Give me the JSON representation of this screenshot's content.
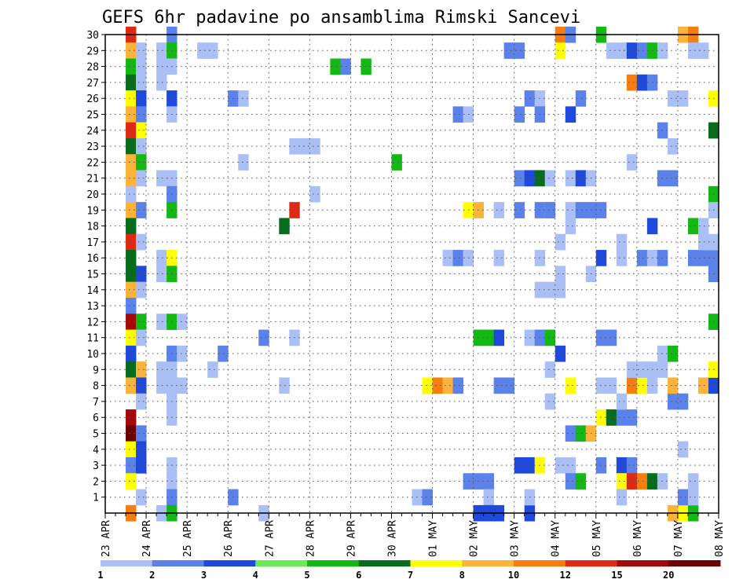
{
  "chart_data": {
    "type": "heatmap",
    "title": "GEFS 6hr padavine po ansamblima Rimski Sancevi",
    "x_tick_labels": [
      "23 APR",
      "24 APR",
      "25 APR",
      "26 APR",
      "27 APR",
      "28 APR",
      "29 APR",
      "30 APR",
      "01 MAY",
      "02 MAY",
      "03 MAY",
      "04 MAY",
      "05 MAY",
      "06 MAY",
      "07 MAY",
      "08 MAY"
    ],
    "x_steps_per_day": 4,
    "x_range_steps": [
      0,
      60
    ],
    "y_tick_labels": [
      "1",
      "2",
      "3",
      "4",
      "5",
      "6",
      "7",
      "8",
      "9",
      "10",
      "11",
      "12",
      "13",
      "14",
      "15",
      "16",
      "17",
      "18",
      "19",
      "20",
      "21",
      "22",
      "23",
      "24",
      "25",
      "26",
      "27",
      "28",
      "29",
      "30"
    ],
    "y_range": [
      0,
      30
    ],
    "grid": "dotted",
    "colorbar": {
      "labels": [
        "1",
        "2",
        "3",
        "4",
        "5",
        "6",
        "7",
        "8",
        "10",
        "12",
        "15",
        "20"
      ],
      "colors": [
        "#aabff5",
        "#5a82ea",
        "#1f48dc",
        "#6ce85a",
        "#14b814",
        "#066c1e",
        "#ffff00",
        "#fbb33a",
        "#f77e0c",
        "#de2a14",
        "#a50a0a",
        "#6b0303"
      ]
    },
    "cells_note": "each cell: [step_index, ensemble_member, color_class_index]",
    "cells": [
      [
        2,
        30,
        9
      ],
      [
        2,
        29,
        7
      ],
      [
        2,
        28,
        4
      ],
      [
        2,
        27,
        5
      ],
      [
        2,
        26,
        6
      ],
      [
        2,
        25,
        7
      ],
      [
        2,
        24,
        9
      ],
      [
        2,
        23,
        5
      ],
      [
        2,
        22,
        7
      ],
      [
        2,
        21,
        7
      ],
      [
        2,
        20,
        0
      ],
      [
        2,
        19,
        7
      ],
      [
        2,
        18,
        5
      ],
      [
        2,
        17,
        9
      ],
      [
        2,
        16,
        5
      ],
      [
        2,
        15,
        5
      ],
      [
        2,
        14,
        7
      ],
      [
        2,
        13,
        1
      ],
      [
        2,
        12,
        10
      ],
      [
        2,
        11,
        6
      ],
      [
        2,
        10,
        2
      ],
      [
        2,
        9,
        5
      ],
      [
        2,
        8,
        7
      ],
      [
        2,
        6,
        10
      ],
      [
        2,
        5,
        11
      ],
      [
        2,
        4,
        6
      ],
      [
        2,
        3,
        1
      ],
      [
        2,
        2,
        6
      ],
      [
        2,
        0,
        8
      ],
      [
        3,
        29,
        0
      ],
      [
        3,
        28,
        0
      ],
      [
        3,
        27,
        0
      ],
      [
        3,
        26,
        2
      ],
      [
        3,
        25,
        1
      ],
      [
        3,
        24,
        6
      ],
      [
        3,
        23,
        0
      ],
      [
        3,
        22,
        4
      ],
      [
        3,
        21,
        0
      ],
      [
        3,
        19,
        1
      ],
      [
        3,
        17,
        0
      ],
      [
        3,
        15,
        2
      ],
      [
        3,
        14,
        0
      ],
      [
        3,
        12,
        4
      ],
      [
        3,
        11,
        0
      ],
      [
        3,
        9,
        7
      ],
      [
        3,
        8,
        2
      ],
      [
        3,
        7,
        0
      ],
      [
        3,
        5,
        1
      ],
      [
        3,
        4,
        2
      ],
      [
        3,
        3,
        2
      ],
      [
        3,
        1,
        0
      ],
      [
        5,
        29,
        0
      ],
      [
        5,
        28,
        0
      ],
      [
        5,
        27,
        0
      ],
      [
        5,
        21,
        0
      ],
      [
        5,
        16,
        0
      ],
      [
        5,
        15,
        0
      ],
      [
        5,
        12,
        0
      ],
      [
        5,
        9,
        0
      ],
      [
        5,
        8,
        0
      ],
      [
        5,
        0,
        0
      ],
      [
        6,
        30,
        1
      ],
      [
        6,
        29,
        4
      ],
      [
        6,
        28,
        0
      ],
      [
        6,
        26,
        2
      ],
      [
        6,
        25,
        0
      ],
      [
        6,
        21,
        0
      ],
      [
        6,
        20,
        1
      ],
      [
        6,
        19,
        4
      ],
      [
        6,
        16,
        6
      ],
      [
        6,
        15,
        4
      ],
      [
        6,
        12,
        4
      ],
      [
        6,
        10,
        1
      ],
      [
        6,
        9,
        0
      ],
      [
        6,
        8,
        0
      ],
      [
        6,
        7,
        0
      ],
      [
        6,
        6,
        0
      ],
      [
        6,
        3,
        0
      ],
      [
        6,
        2,
        0
      ],
      [
        6,
        1,
        1
      ],
      [
        6,
        0,
        4
      ],
      [
        7,
        12,
        0
      ],
      [
        7,
        10,
        0
      ],
      [
        7,
        8,
        0
      ],
      [
        9,
        29,
        0
      ],
      [
        10,
        29,
        0
      ],
      [
        10,
        9,
        0
      ],
      [
        11,
        10,
        1
      ],
      [
        12,
        26,
        1
      ],
      [
        13,
        26,
        0
      ],
      [
        12,
        1,
        1
      ],
      [
        13,
        22,
        0
      ],
      [
        15,
        11,
        1
      ],
      [
        15,
        0,
        0
      ],
      [
        18,
        23,
        0
      ],
      [
        19,
        23,
        0
      ],
      [
        20,
        23,
        0
      ],
      [
        17,
        18,
        5
      ],
      [
        18,
        19,
        9
      ],
      [
        18,
        11,
        0
      ],
      [
        17,
        8,
        0
      ],
      [
        20,
        20,
        0
      ],
      [
        22,
        28,
        4
      ],
      [
        23,
        28,
        1
      ],
      [
        25,
        28,
        4
      ],
      [
        28,
        22,
        4
      ],
      [
        31,
        8,
        6
      ],
      [
        32,
        8,
        8
      ],
      [
        33,
        8,
        7
      ],
      [
        34,
        8,
        1
      ],
      [
        30,
        1,
        0
      ],
      [
        31,
        1,
        1
      ],
      [
        33,
        16,
        0
      ],
      [
        34,
        16,
        1
      ],
      [
        35,
        16,
        0
      ],
      [
        34,
        25,
        1
      ],
      [
        35,
        25,
        0
      ],
      [
        35,
        19,
        6
      ],
      [
        36,
        19,
        7
      ],
      [
        35,
        2,
        1
      ],
      [
        36,
        2,
        1
      ],
      [
        37,
        2,
        1
      ],
      [
        37,
        1,
        0
      ],
      [
        36,
        11,
        4
      ],
      [
        37,
        11,
        4
      ],
      [
        38,
        11,
        2
      ],
      [
        36,
        0,
        2
      ],
      [
        37,
        0,
        2
      ],
      [
        38,
        0,
        2
      ],
      [
        38,
        8,
        1
      ],
      [
        39,
        8,
        1
      ],
      [
        38,
        16,
        0
      ],
      [
        38,
        19,
        0
      ],
      [
        39,
        29,
        1
      ],
      [
        40,
        29,
        1
      ],
      [
        40,
        25,
        1
      ],
      [
        40,
        19,
        1
      ],
      [
        40,
        21,
        1
      ],
      [
        41,
        21,
        2
      ],
      [
        42,
        21,
        5
      ],
      [
        43,
        21,
        0
      ],
      [
        41,
        26,
        1
      ],
      [
        42,
        26,
        0
      ],
      [
        42,
        25,
        1
      ],
      [
        40,
        3,
        2
      ],
      [
        41,
        3,
        2
      ],
      [
        42,
        3,
        6
      ],
      [
        41,
        11,
        0
      ],
      [
        42,
        11,
        1
      ],
      [
        43,
        11,
        4
      ],
      [
        41,
        0,
        2
      ],
      [
        41,
        1,
        0
      ],
      [
        42,
        19,
        1
      ],
      [
        43,
        19,
        0
      ],
      [
        42,
        16,
        0
      ],
      [
        42,
        14,
        0
      ],
      [
        43,
        14,
        0
      ],
      [
        44,
        14,
        0
      ],
      [
        44,
        15,
        0
      ],
      [
        43,
        9,
        0
      ],
      [
        43,
        7,
        0
      ],
      [
        44,
        30,
        8
      ],
      [
        44,
        29,
        6
      ],
      [
        44,
        10,
        2
      ],
      [
        44,
        17,
        0
      ],
      [
        43,
        19,
        1
      ],
      [
        45,
        30,
        1
      ],
      [
        45,
        25,
        2
      ],
      [
        45,
        21,
        0
      ],
      [
        45,
        19,
        0
      ],
      [
        45,
        18,
        0
      ],
      [
        45,
        8,
        6
      ],
      [
        45,
        5,
        1
      ],
      [
        45,
        3,
        0
      ],
      [
        45,
        2,
        1
      ],
      [
        46,
        2,
        4
      ],
      [
        46,
        5,
        4
      ],
      [
        47,
        5,
        7
      ],
      [
        44,
        3,
        0
      ],
      [
        46,
        26,
        1
      ],
      [
        46,
        21,
        2
      ],
      [
        47,
        21,
        0
      ],
      [
        46,
        19,
        1
      ],
      [
        47,
        19,
        1
      ],
      [
        48,
        19,
        1
      ],
      [
        48,
        30,
        4
      ],
      [
        48,
        16,
        2
      ],
      [
        48,
        11,
        1
      ],
      [
        49,
        11,
        1
      ],
      [
        47,
        15,
        0
      ],
      [
        49,
        29,
        0
      ],
      [
        50,
        29,
        0
      ],
      [
        51,
        29,
        2
      ],
      [
        52,
        29,
        1
      ],
      [
        53,
        29,
        4
      ],
      [
        54,
        29,
        0
      ],
      [
        51,
        27,
        8
      ],
      [
        52,
        27,
        2
      ],
      [
        53,
        27,
        1
      ],
      [
        48,
        8,
        0
      ],
      [
        49,
        8,
        0
      ],
      [
        48,
        6,
        6
      ],
      [
        49,
        6,
        5
      ],
      [
        50,
        6,
        1
      ],
      [
        51,
        6,
        1
      ],
      [
        48,
        3,
        1
      ],
      [
        50,
        3,
        2
      ],
      [
        51,
        3,
        1
      ],
      [
        50,
        7,
        0
      ],
      [
        50,
        16,
        0
      ],
      [
        50,
        17,
        0
      ],
      [
        51,
        8,
        8
      ],
      [
        52,
        8,
        6
      ],
      [
        53,
        8,
        0
      ],
      [
        50,
        2,
        6
      ],
      [
        51,
        2,
        9
      ],
      [
        52,
        2,
        8
      ],
      [
        53,
        2,
        5
      ],
      [
        54,
        2,
        0
      ],
      [
        52,
        16,
        1
      ],
      [
        53,
        16,
        0
      ],
      [
        54,
        16,
        1
      ],
      [
        53,
        18,
        2
      ],
      [
        51,
        22,
        0
      ],
      [
        50,
        1,
        0
      ],
      [
        51,
        9,
        0
      ],
      [
        52,
        9,
        0
      ],
      [
        53,
        9,
        0
      ],
      [
        54,
        9,
        0
      ],
      [
        54,
        10,
        0
      ],
      [
        55,
        10,
        4
      ],
      [
        55,
        7,
        1
      ],
      [
        56,
        7,
        1
      ],
      [
        55,
        8,
        7
      ],
      [
        54,
        21,
        1
      ],
      [
        55,
        21,
        1
      ],
      [
        54,
        24,
        1
      ],
      [
        55,
        26,
        0
      ],
      [
        56,
        26,
        0
      ],
      [
        55,
        23,
        0
      ],
      [
        56,
        4,
        0
      ],
      [
        56,
        0,
        6
      ],
      [
        57,
        0,
        4
      ],
      [
        55,
        0,
        7
      ],
      [
        56,
        1,
        1
      ],
      [
        57,
        1,
        0
      ],
      [
        56,
        30,
        7
      ],
      [
        57,
        30,
        8
      ],
      [
        57,
        2,
        0
      ],
      [
        57,
        29,
        0
      ],
      [
        58,
        29,
        0
      ],
      [
        57,
        16,
        1
      ],
      [
        58,
        16,
        1
      ],
      [
        59,
        16,
        1
      ],
      [
        58,
        17,
        0
      ],
      [
        59,
        17,
        0
      ],
      [
        57,
        18,
        4
      ],
      [
        58,
        18,
        0
      ],
      [
        58,
        8,
        7
      ],
      [
        59,
        8,
        2
      ],
      [
        59,
        26,
        6
      ],
      [
        59,
        20,
        4
      ],
      [
        59,
        24,
        5
      ],
      [
        59,
        19,
        0
      ],
      [
        59,
        12,
        4
      ],
      [
        59,
        9,
        6
      ],
      [
        59,
        15,
        1
      ]
    ]
  }
}
